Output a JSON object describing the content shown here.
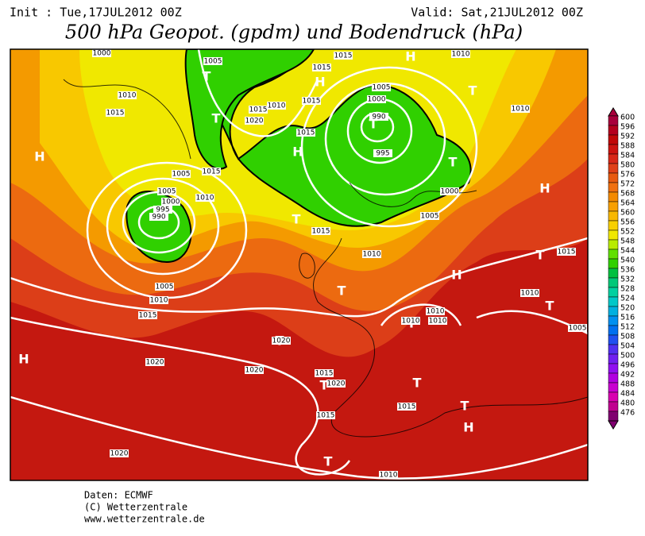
{
  "header": {
    "init": "Init : Tue,17JUL2012 00Z",
    "valid": "Valid: Sat,21JUL2012 00Z",
    "title": "500 hPa Geopot. (gpdm) und Bodendruck (hPa)"
  },
  "map": {
    "markers": [
      "H",
      "T",
      "H",
      "T",
      "H",
      "T",
      "H",
      "T",
      "T",
      "T",
      "H",
      "T",
      "H",
      "T",
      "T",
      "T",
      "T",
      "H",
      "T",
      "T",
      "T",
      "H",
      "T"
    ],
    "isobar_labels": [
      "1000",
      "1010",
      "1015",
      "1005",
      "1015",
      "1010",
      "1015",
      "1015",
      "1005",
      "1000",
      "990",
      "995",
      "1000",
      "1005",
      "1010",
      "1020",
      "1015",
      "1010",
      "1015",
      "1005",
      "1015",
      "1010",
      "1005",
      "1000",
      "995",
      "990",
      "1015",
      "1010",
      "1015",
      "1010",
      "1005",
      "1010",
      "1015",
      "1020",
      "1020",
      "1020",
      "1015",
      "1020",
      "1015",
      "1015",
      "1010",
      "1010",
      "1010",
      "1005",
      "1020",
      "1010"
    ]
  },
  "colorbar": {
    "levels": [
      600,
      596,
      592,
      588,
      584,
      580,
      576,
      572,
      568,
      564,
      560,
      556,
      552,
      548,
      544,
      540,
      536,
      532,
      528,
      524,
      520,
      516,
      512,
      508,
      504,
      500,
      496,
      492,
      488,
      484,
      480,
      476
    ],
    "colors": [
      "#a8003c",
      "#b4001e",
      "#c00808",
      "#cc1410",
      "#d82818",
      "#e04018",
      "#e85a10",
      "#f07010",
      "#f48a00",
      "#f8a000",
      "#f8b800",
      "#f8d000",
      "#f0e800",
      "#b8ec00",
      "#60e000",
      "#30d000",
      "#00c040",
      "#00c878",
      "#00d0a0",
      "#00c8c8",
      "#00b0e0",
      "#0090f0",
      "#0070f0",
      "#2050f0",
      "#5030f0",
      "#7020f0",
      "#9010f0",
      "#b000e0",
      "#c800d0",
      "#d800b0",
      "#c00090",
      "#800070"
    ]
  },
  "footer": [
    "Daten: ECMWF",
    "(C) Wetterzentrale",
    "www.wetterzentrale.de"
  ]
}
